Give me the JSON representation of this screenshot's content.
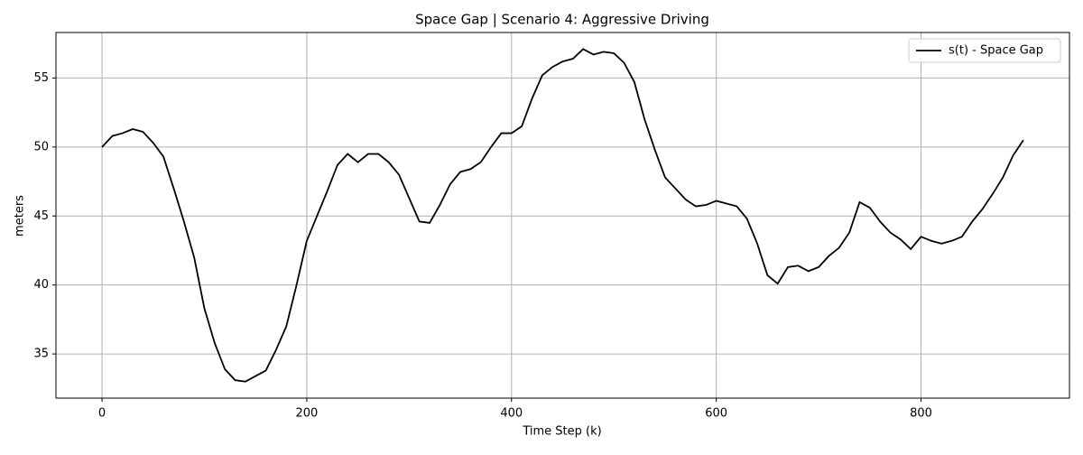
{
  "chart_data": {
    "type": "line",
    "title": "Space Gap | Scenario 4: Aggressive Driving",
    "x_label": "Time Step (k)",
    "y_label": "meters",
    "x": [
      0,
      10,
      20,
      30,
      40,
      50,
      60,
      70,
      80,
      90,
      100,
      110,
      120,
      130,
      140,
      150,
      160,
      170,
      180,
      190,
      200,
      210,
      220,
      230,
      240,
      250,
      260,
      270,
      280,
      290,
      300,
      310,
      320,
      330,
      340,
      350,
      360,
      370,
      380,
      390,
      400,
      410,
      420,
      430,
      440,
      450,
      460,
      470,
      480,
      490,
      500,
      510,
      520,
      530,
      540,
      550,
      560,
      570,
      580,
      590,
      600,
      610,
      620,
      630,
      640,
      650,
      660,
      670,
      680,
      690,
      700,
      710,
      720,
      730,
      740,
      750,
      760,
      770,
      780,
      790,
      800,
      810,
      820,
      830,
      840,
      850,
      860,
      870,
      880,
      890,
      900
    ],
    "series": [
      {
        "name": "s(t) - Space Gap",
        "color": "#000000",
        "values": [
          50.0,
          50.8,
          51.0,
          51.3,
          51.1,
          50.3,
          49.3,
          47.0,
          44.6,
          42.0,
          38.3,
          35.8,
          33.9,
          33.1,
          33.0,
          33.4,
          33.8,
          35.3,
          37.0,
          40.0,
          43.2,
          45.0,
          46.8,
          48.7,
          49.5,
          48.9,
          49.5,
          49.5,
          48.9,
          48.0,
          46.3,
          44.6,
          44.5,
          45.8,
          47.3,
          48.2,
          48.4,
          48.9,
          50.0,
          51.0,
          51.0,
          51.5,
          53.5,
          55.2,
          55.8,
          56.2,
          56.4,
          57.1,
          56.7,
          56.9,
          56.8,
          56.1,
          54.7,
          52.0,
          49.8,
          47.8,
          47.0,
          46.2,
          45.7,
          45.8,
          46.1,
          45.9,
          45.7,
          44.8,
          43.0,
          40.7,
          40.1,
          41.3,
          41.4,
          41.0,
          41.3,
          42.1,
          42.7,
          43.8,
          46.0,
          45.6,
          44.6,
          43.8,
          43.3,
          42.6,
          43.5,
          43.2,
          43.0,
          43.2,
          43.5,
          44.6,
          45.5,
          46.6,
          47.8,
          49.4,
          50.5
        ]
      }
    ],
    "xlim": [
      -45,
      945
    ],
    "ylim": [
      31.8,
      58.3
    ],
    "xticks": [
      0,
      200,
      400,
      600,
      800
    ],
    "yticks": [
      35,
      40,
      45,
      50,
      55
    ],
    "grid": true,
    "legend": "upper right"
  }
}
